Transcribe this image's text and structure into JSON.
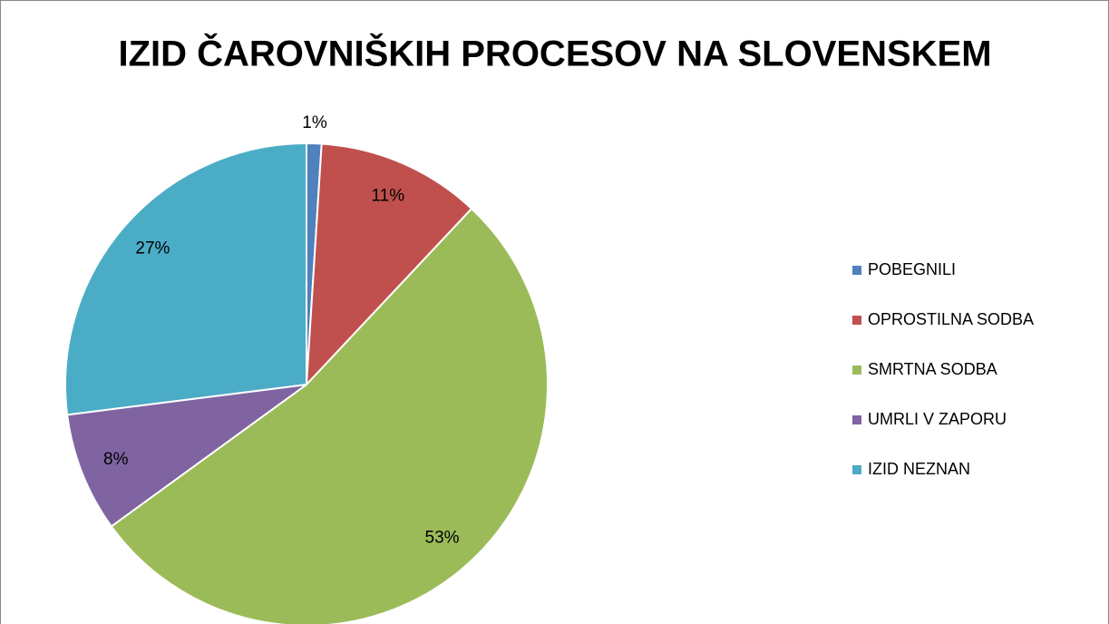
{
  "chart_data": {
    "type": "pie",
    "title": "IZID ČAROVNIŠKIH PROCESOV NA SLOVENSKEM",
    "categories": [
      "POBEGNILI",
      "OPROSTILNA SODBA",
      "SMRTNA SODBA",
      "UMRLI V ZAPORU",
      "IZID NEZNAN"
    ],
    "values": [
      1,
      11,
      53,
      8,
      27
    ],
    "value_labels": [
      "1%",
      "11%",
      "53%",
      "8%",
      "27%"
    ],
    "colors": [
      "#4f81bd",
      "#c0504d",
      "#9bbb59",
      "#8064a2",
      "#4bacc6"
    ],
    "legend": "right"
  }
}
